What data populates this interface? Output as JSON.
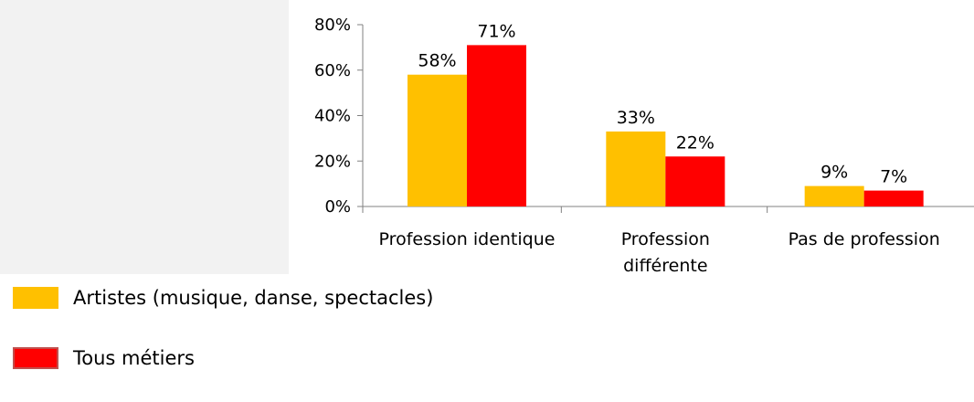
{
  "chart_data": {
    "type": "bar",
    "categories": [
      [
        "Profession identique"
      ],
      [
        "Profession",
        "différente"
      ],
      [
        "Pas de profession"
      ]
    ],
    "series": [
      {
        "name": "Artistes (musique, danse, spectacles)",
        "color": "#FFC000",
        "values": [
          58,
          33,
          9
        ],
        "labels": [
          "58%",
          "33%",
          "9%"
        ]
      },
      {
        "name": "Tous métiers",
        "color": "#FF0000",
        "values": [
          71,
          22,
          7
        ],
        "labels": [
          "71%",
          "22%",
          "7%"
        ]
      }
    ],
    "yticks": [
      {
        "value": 0,
        "label": "0%"
      },
      {
        "value": 20,
        "label": "20%"
      },
      {
        "value": 40,
        "label": "40%"
      },
      {
        "value": 60,
        "label": "60%"
      },
      {
        "value": 80,
        "label": "80%"
      }
    ],
    "ylim": [
      0,
      80
    ],
    "grid": false,
    "legend_position": "bottom-left"
  }
}
